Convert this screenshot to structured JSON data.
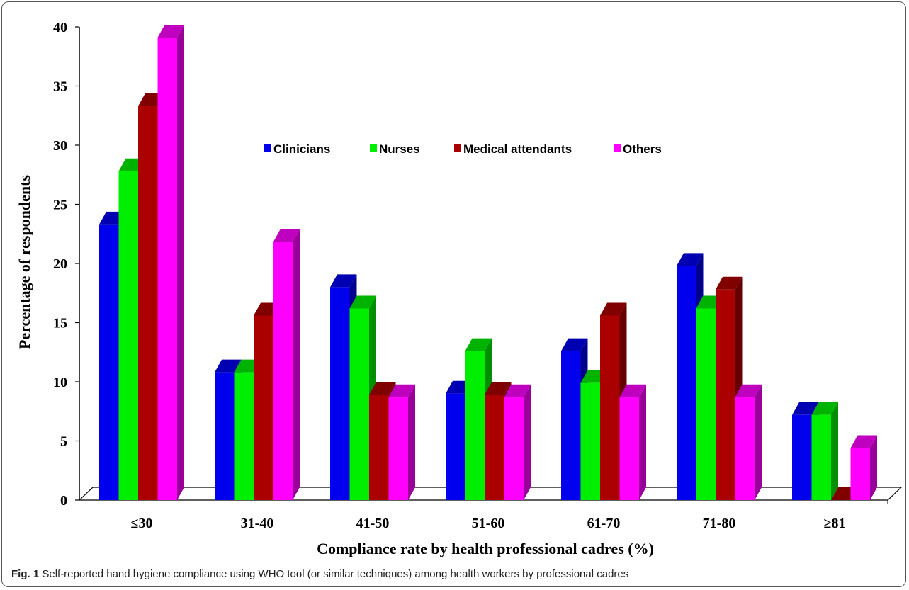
{
  "chart_data": {
    "type": "bar",
    "style": "3d-clustered-column",
    "categories": [
      "≤30",
      "31-40",
      "41-50",
      "51-60",
      "61-70",
      "71-80",
      "≥81"
    ],
    "series": [
      {
        "name": "Clinicians",
        "color": "#0000ee",
        "values": [
          23.3,
          10.8,
          18.0,
          9.0,
          12.6,
          19.8,
          7.2
        ]
      },
      {
        "name": "Nurses",
        "color": "#00ee00",
        "values": [
          27.8,
          10.8,
          16.2,
          12.6,
          9.9,
          16.2,
          7.2
        ]
      },
      {
        "name": "Medical attendants",
        "color": "#aa0000",
        "values": [
          33.3,
          15.6,
          8.9,
          8.9,
          15.6,
          17.8,
          0.0
        ]
      },
      {
        "name": "Others",
        "color": "#ff00ff",
        "values": [
          39.1,
          21.8,
          8.7,
          8.7,
          8.7,
          8.7,
          4.4
        ]
      }
    ],
    "ylim": [
      0,
      40
    ],
    "yticks": [
      0,
      5,
      10,
      15,
      20,
      25,
      30,
      35,
      40
    ],
    "xlabel": "Compliance rate by health professional cadres (%)",
    "ylabel": "Percentage of respondents",
    "legend_position": "top-center",
    "grid": false
  },
  "caption": {
    "label": "Fig. 1",
    "text": "Self-reported hand hygiene compliance using WHO tool (or similar techniques) among health workers by professional cadres"
  }
}
